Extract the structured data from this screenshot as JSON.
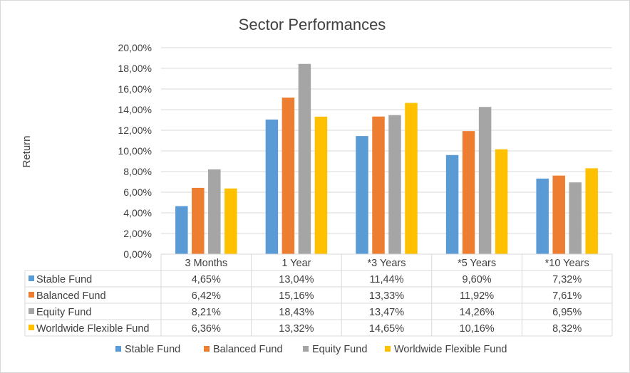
{
  "chart_data": {
    "type": "bar",
    "title": "Sector Performances",
    "ylabel": "Return",
    "xlabel": "",
    "ylim": [
      0,
      20
    ],
    "yticks": [
      "0,00%",
      "2,00%",
      "4,00%",
      "6,00%",
      "8,00%",
      "10,00%",
      "12,00%",
      "14,00%",
      "16,00%",
      "18,00%",
      "20,00%"
    ],
    "grid": true,
    "legend_position": "bottom",
    "categories": [
      "3 Months",
      "1 Year",
      "*3 Years",
      "*5 Years",
      "*10 Years"
    ],
    "series": [
      {
        "name": "Stable Fund",
        "color": "#5b9bd5",
        "values": [
          4.65,
          13.04,
          11.44,
          9.6,
          7.32
        ],
        "labels": [
          "4,65%",
          "13,04%",
          "11,44%",
          "9,60%",
          "7,32%"
        ]
      },
      {
        "name": "Balanced Fund",
        "color": "#ed7d31",
        "values": [
          6.42,
          15.16,
          13.33,
          11.92,
          7.61
        ],
        "labels": [
          "6,42%",
          "15,16%",
          "13,33%",
          "11,92%",
          "7,61%"
        ]
      },
      {
        "name": "Equity Fund",
        "color": "#a5a5a5",
        "values": [
          8.21,
          18.43,
          13.47,
          14.26,
          6.95
        ],
        "labels": [
          "8,21%",
          "18,43%",
          "13,47%",
          "14,26%",
          "6,95%"
        ]
      },
      {
        "name": "Worldwide Flexible Fund",
        "color": "#ffc000",
        "values": [
          6.36,
          13.32,
          14.65,
          10.16,
          8.32
        ],
        "labels": [
          "6,36%",
          "13,32%",
          "14,65%",
          "10,16%",
          "8,32%"
        ]
      }
    ]
  }
}
